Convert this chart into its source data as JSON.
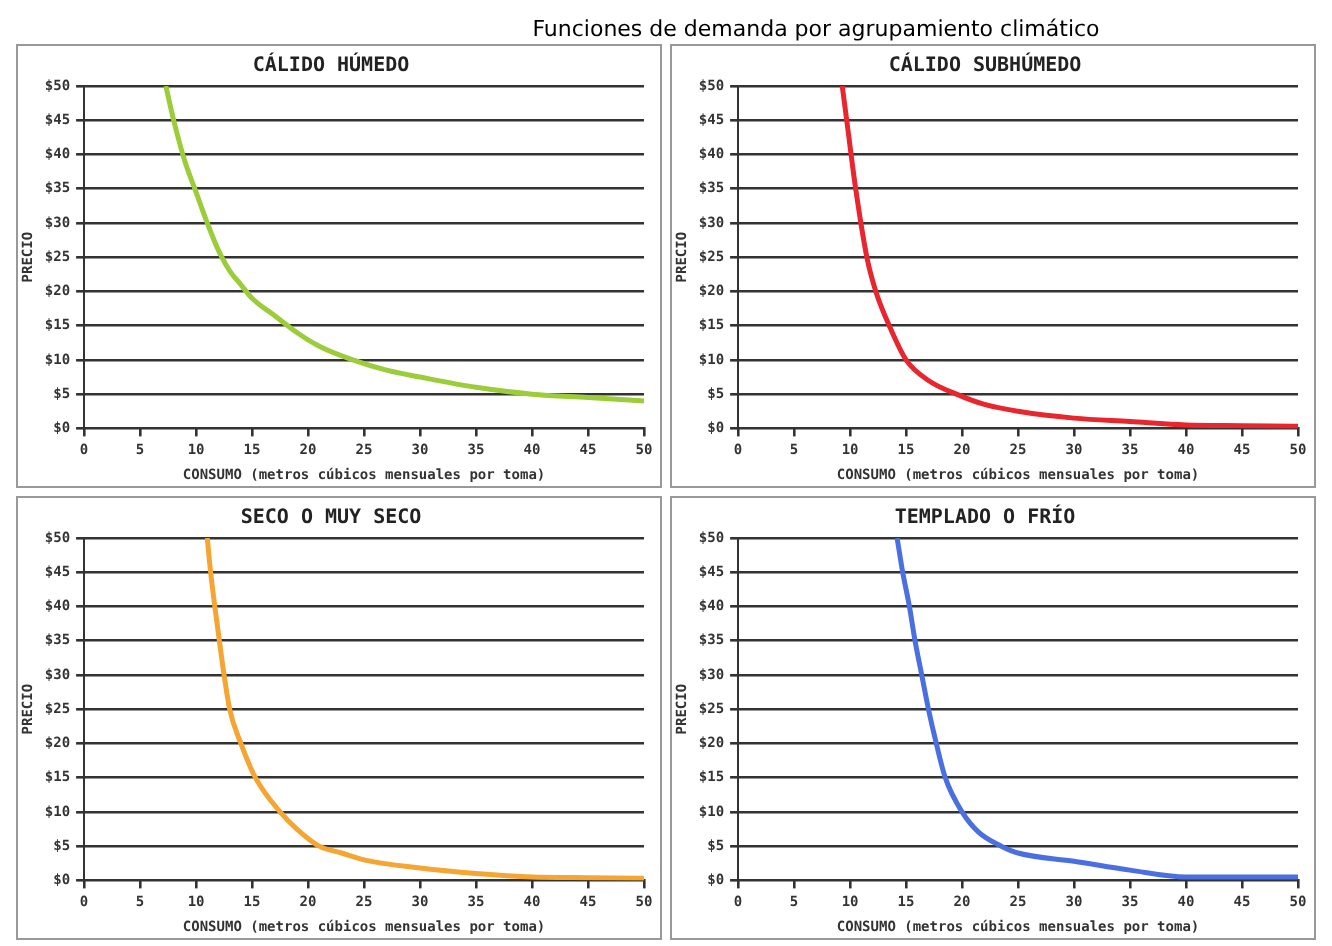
{
  "chart_data": [
    {
      "type": "line",
      "title": "CÁLIDO HÚMEDO",
      "xlabel": "CONSUMO (metros cúbicos mensuales por toma)",
      "ylabel": "PRECIO",
      "annotations": [
        "Funciones de demanda por agrupamiento climático"
      ],
      "xlim": [
        0,
        50
      ],
      "xticks": [
        0,
        5,
        10,
        15,
        20,
        25,
        30,
        35,
        40,
        45,
        50
      ],
      "ylim": [
        0,
        50
      ],
      "yticks": [
        {
          "value": 0,
          "label": "$0"
        },
        {
          "value": 5,
          "label": "$5"
        },
        {
          "value": 10,
          "label": "$10"
        },
        {
          "value": 15,
          "label": "$15"
        },
        {
          "value": 20,
          "label": "$20"
        },
        {
          "value": 25,
          "label": "$25"
        },
        {
          "value": 30,
          "label": "$30"
        },
        {
          "value": 35,
          "label": "$35"
        },
        {
          "value": 40,
          "label": "$40"
        },
        {
          "value": 45,
          "label": "$45"
        },
        {
          "value": 50,
          "label": "$50"
        }
      ],
      "grid": "y",
      "legend": false,
      "marker": "none",
      "line_style": "solid",
      "series": [
        {
          "color": "#9ccc3a",
          "x": [
            7.3,
            8,
            9,
            10,
            11,
            12,
            13,
            14,
            15,
            17,
            19,
            21,
            24,
            27,
            30,
            35,
            40,
            45,
            50
          ],
          "values": [
            50,
            45,
            39,
            34.5,
            30,
            26,
            23,
            21,
            19,
            16.5,
            14,
            12,
            10,
            8.5,
            7.5,
            6,
            5,
            4.5,
            4
          ]
        }
      ]
    },
    {
      "type": "line",
      "title": "CÁLIDO SUBHÚMEDO",
      "xlabel": "CONSUMO (metros cúbicos mensuales por toma)",
      "ylabel": "PRECIO",
      "xlim": [
        0,
        50
      ],
      "xticks": [
        0,
        5,
        10,
        15,
        20,
        25,
        30,
        35,
        40,
        45,
        50
      ],
      "ylim": [
        0,
        50
      ],
      "yticks": [
        {
          "value": 0,
          "label": "$0"
        },
        {
          "value": 5,
          "label": "$5"
        },
        {
          "value": 10,
          "label": "$10"
        },
        {
          "value": 15,
          "label": "$15"
        },
        {
          "value": 20,
          "label": "$20"
        },
        {
          "value": 25,
          "label": "$25"
        },
        {
          "value": 30,
          "label": "$30"
        },
        {
          "value": 35,
          "label": "$35"
        },
        {
          "value": 40,
          "label": "$40"
        },
        {
          "value": 45,
          "label": "$45"
        },
        {
          "value": 50,
          "label": "$50"
        }
      ],
      "grid": "y",
      "legend": false,
      "marker": "none",
      "line_style": "solid",
      "series": [
        {
          "color": "#e8262e",
          "x": [
            9.3,
            9.7,
            10.5,
            11.5,
            12.3,
            13.5,
            15,
            17,
            19.5,
            22,
            25,
            30,
            35,
            40,
            45,
            50
          ],
          "values": [
            50,
            45,
            35,
            25,
            20,
            15,
            10,
            7,
            5,
            3.5,
            2.5,
            1.5,
            1,
            0.5,
            0.4,
            0.3
          ]
        }
      ]
    },
    {
      "type": "line",
      "title": "SECO O MUY SECO",
      "xlabel": "CONSUMO (metros cúbicos mensuales por toma)",
      "ylabel": "PRECIO",
      "xlim": [
        0,
        50
      ],
      "xticks": [
        0,
        5,
        10,
        15,
        20,
        25,
        30,
        35,
        40,
        45,
        50
      ],
      "ylim": [
        0,
        50
      ],
      "yticks": [
        {
          "value": 0,
          "label": "$0"
        },
        {
          "value": 5,
          "label": "$5"
        },
        {
          "value": 10,
          "label": "$10"
        },
        {
          "value": 15,
          "label": "$15"
        },
        {
          "value": 20,
          "label": "$20"
        },
        {
          "value": 25,
          "label": "$25"
        },
        {
          "value": 30,
          "label": "$30"
        },
        {
          "value": 35,
          "label": "$35"
        },
        {
          "value": 40,
          "label": "$40"
        },
        {
          "value": 45,
          "label": "$45"
        },
        {
          "value": 50,
          "label": "$50"
        }
      ],
      "grid": "y",
      "legend": false,
      "marker": "none",
      "line_style": "solid",
      "series": [
        {
          "color": "#f5a531",
          "x": [
            11,
            11.3,
            12,
            12.5,
            13,
            14,
            15.3,
            17.5,
            19,
            21,
            23,
            25,
            30,
            35,
            40,
            45,
            50
          ],
          "values": [
            50,
            45,
            36,
            30,
            25,
            20,
            15,
            10,
            7.5,
            5,
            4,
            3,
            1.8,
            1,
            0.5,
            0.4,
            0.3
          ]
        }
      ]
    },
    {
      "type": "line",
      "title": "TEMPLADO O FRÍO",
      "xlabel": "CONSUMO (metros cúbicos mensuales por toma)",
      "ylabel": "PRECIO",
      "xlim": [
        0,
        50
      ],
      "xticks": [
        0,
        5,
        10,
        15,
        20,
        25,
        30,
        35,
        40,
        45,
        50
      ],
      "ylim": [
        0,
        50
      ],
      "yticks": [
        {
          "value": 0,
          "label": "$0"
        },
        {
          "value": 5,
          "label": "$5"
        },
        {
          "value": 10,
          "label": "$10"
        },
        {
          "value": 15,
          "label": "$15"
        },
        {
          "value": 20,
          "label": "$20"
        },
        {
          "value": 25,
          "label": "$25"
        },
        {
          "value": 30,
          "label": "$30"
        },
        {
          "value": 35,
          "label": "$35"
        },
        {
          "value": 40,
          "label": "$40"
        },
        {
          "value": 45,
          "label": "$45"
        },
        {
          "value": 50,
          "label": "$50"
        }
      ],
      "grid": "y",
      "legend": false,
      "marker": "none",
      "line_style": "solid",
      "series": [
        {
          "color": "#4a6fe0",
          "x": [
            14.2,
            14.7,
            15.3,
            15.8,
            16.4,
            17,
            17.7,
            18.5,
            20,
            21.5,
            23.5,
            25,
            30,
            35,
            40,
            45,
            50
          ],
          "values": [
            50,
            45,
            40,
            35,
            30,
            25,
            20,
            15,
            10,
            7,
            5,
            4,
            2.8,
            1.5,
            0.5,
            0.5,
            0.5
          ]
        }
      ]
    }
  ]
}
